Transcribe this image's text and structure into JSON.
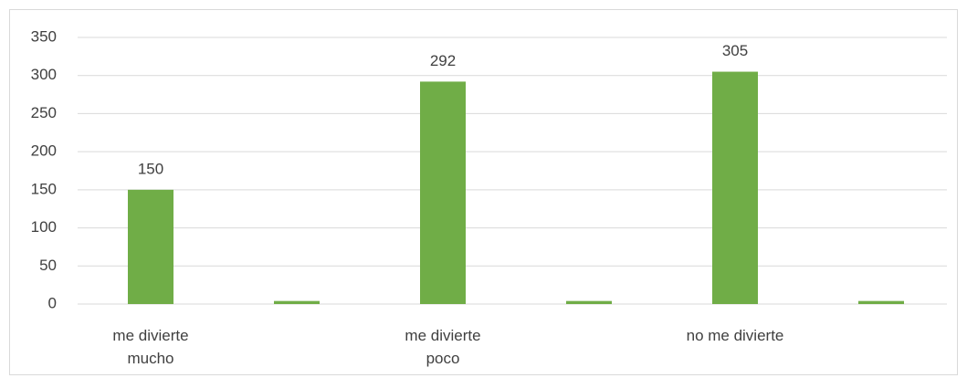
{
  "chart_data": {
    "type": "bar",
    "categories": [
      "me divierte mucho",
      null,
      "me divierte poco",
      null,
      "no me divierte",
      null
    ],
    "values": [
      150,
      4,
      292,
      4,
      305,
      4
    ],
    "value_labels": [
      "150",
      null,
      "292",
      null,
      "305",
      null
    ],
    "color": "#70ad47",
    "ylim": [
      0,
      350
    ],
    "yticks": [
      0,
      50,
      100,
      150,
      200,
      250,
      300,
      350
    ],
    "grid": true
  }
}
